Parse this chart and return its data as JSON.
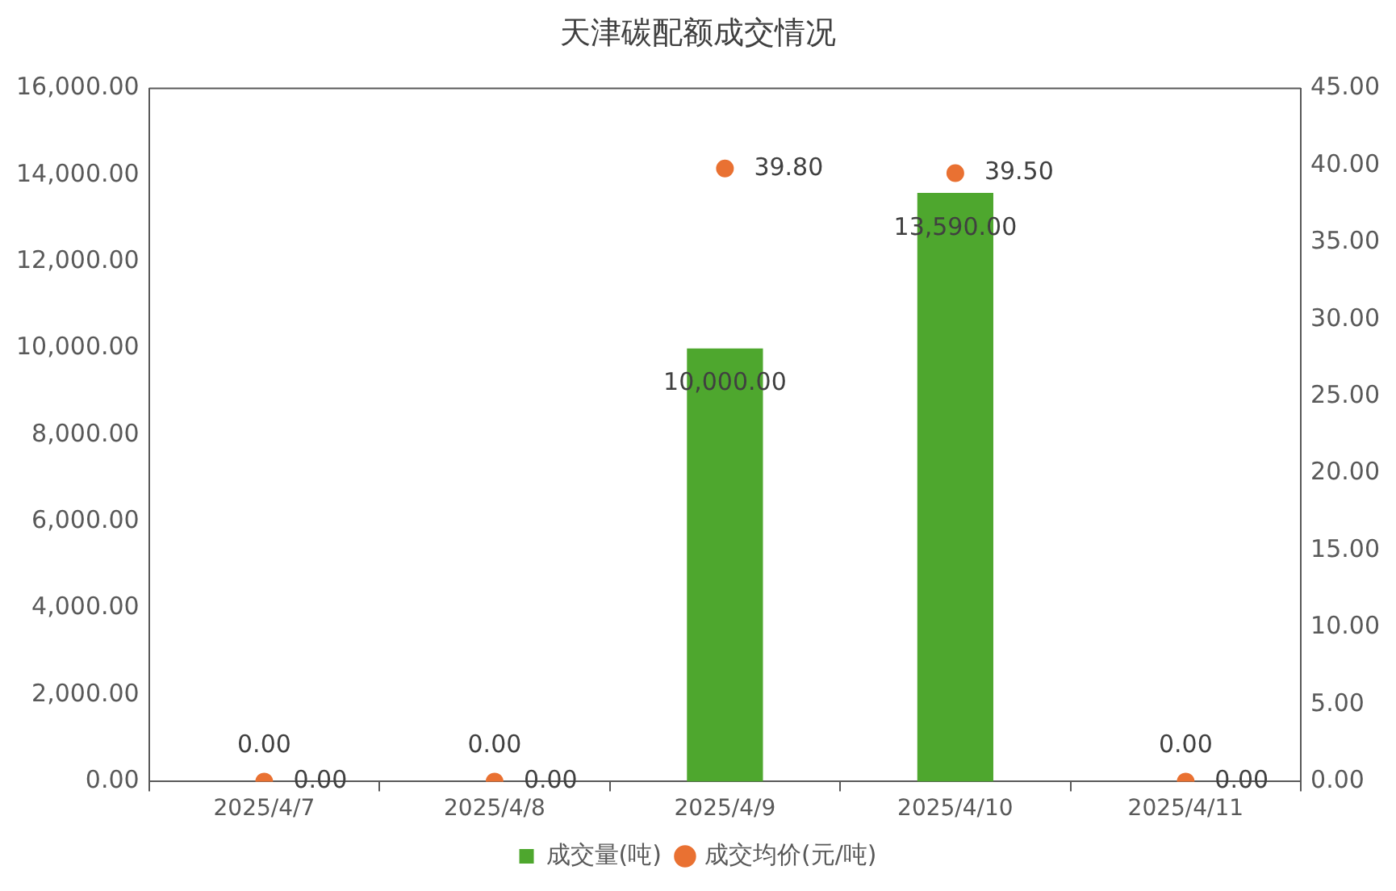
{
  "chart_data": {
    "type": "bar",
    "title": "天津碳配额成交情况",
    "categories": [
      "2025/4/7",
      "2025/4/8",
      "2025/4/9",
      "2025/4/10",
      "2025/4/11"
    ],
    "series": [
      {
        "name": "成交量(吨)",
        "color": "#4ea72e",
        "values": [
          0,
          0,
          10000,
          13590,
          0
        ],
        "value_labels": [
          "0.00",
          "0.00",
          "10,000.00",
          "13,590.00",
          "0.00"
        ]
      },
      {
        "name": "成交均价(元/吨)",
        "type": "scatter",
        "axis": "y2",
        "color": "#e97132",
        "marker": "circle",
        "x": [
          "2025/4/7",
          "2025/4/8",
          "2025/4/9",
          "2025/4/10",
          "2025/4/11"
        ],
        "values": [
          0,
          0,
          39.8,
          39.5,
          0
        ],
        "value_labels": [
          "0.00",
          "0.00",
          "39.80",
          "39.50",
          "0.00"
        ]
      }
    ],
    "ylim": [
      0,
      16000
    ],
    "yticks": [
      {
        "value": 0,
        "label": "0.00"
      },
      {
        "value": 2000,
        "label": "2,000.00"
      },
      {
        "value": 4000,
        "label": "4,000.00"
      },
      {
        "value": 6000,
        "label": "6,000.00"
      },
      {
        "value": 8000,
        "label": "8,000.00"
      },
      {
        "value": 10000,
        "label": "10,000.00"
      },
      {
        "value": 12000,
        "label": "12,000.00"
      },
      {
        "value": 14000,
        "label": "14,000.00"
      },
      {
        "value": 16000,
        "label": "16,000.00"
      }
    ],
    "y2lim": [
      0,
      45
    ],
    "y2ticks": [
      {
        "value": 0,
        "label": "0.00"
      },
      {
        "value": 5,
        "label": "5.00"
      },
      {
        "value": 10,
        "label": "10.00"
      },
      {
        "value": 15,
        "label": "15.00"
      },
      {
        "value": 20,
        "label": "20.00"
      },
      {
        "value": 25,
        "label": "25.00"
      },
      {
        "value": 30,
        "label": "30.00"
      },
      {
        "value": 35,
        "label": "35.00"
      },
      {
        "value": 40,
        "label": "40.00"
      },
      {
        "value": 45,
        "label": "45.00"
      }
    ],
    "grid": false,
    "legend": "bottom"
  }
}
